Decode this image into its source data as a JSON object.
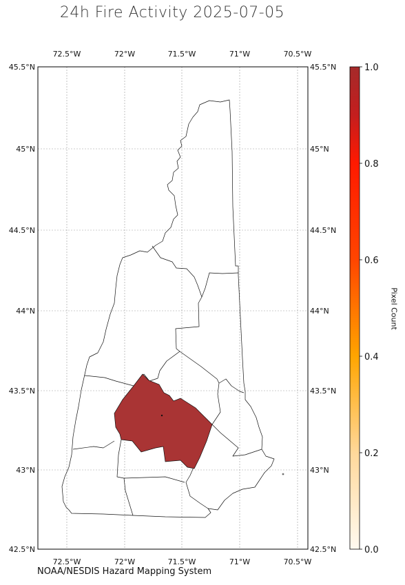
{
  "title": "24h Fire Activity 2025-07-05",
  "credit": "NOAA/NESDIS Hazard Mapping System",
  "colorbar": {
    "label": "Pixel Count",
    "ticks": [
      "0.0",
      "0.2",
      "0.4",
      "0.6",
      "0.8",
      "1.0"
    ],
    "colors": [
      "#fffaf0",
      "#ffd89a",
      "#ffa500",
      "#ff4500",
      "#ff0000",
      "#b22222",
      "#a52a2a"
    ]
  },
  "map": {
    "lon_ticks": [
      "72.5°W",
      "72°W",
      "71.5°W",
      "71°W",
      "70.5°W"
    ],
    "lat_ticks": [
      "45.5°N",
      "45°N",
      "44.5°N",
      "44°N",
      "43.5°N",
      "43°N",
      "42.5°N"
    ],
    "highlight_color": "#a93434",
    "highlighted_county_value": 1.0
  }
}
